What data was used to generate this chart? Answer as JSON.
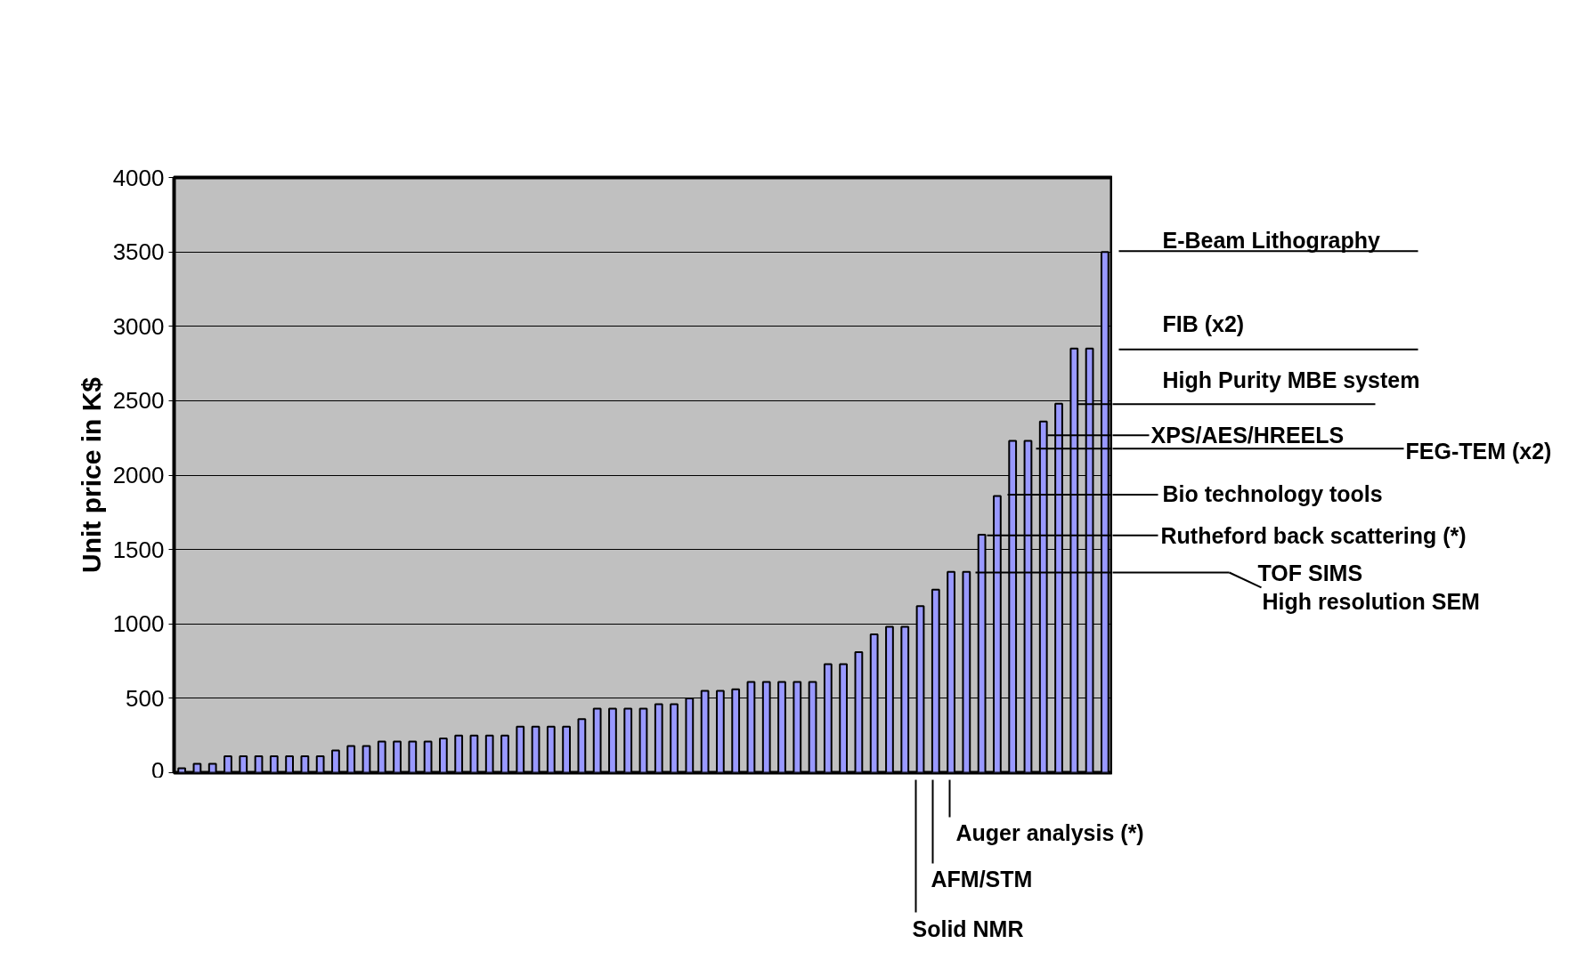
{
  "chart_data": {
    "type": "bar",
    "ylabel": "Unit price in K$",
    "categories": [
      null,
      null,
      null,
      null,
      null,
      null,
      null,
      null,
      null,
      null,
      null,
      null,
      null,
      null,
      null,
      null,
      null,
      null,
      null,
      null,
      null,
      null,
      null,
      null,
      null,
      null,
      null,
      null,
      null,
      null,
      null,
      null,
      null,
      null,
      null,
      null,
      null,
      null,
      null,
      null,
      null,
      null,
      null,
      null,
      null,
      null,
      null,
      null,
      null,
      null,
      null,
      null,
      null,
      null,
      null,
      null,
      null,
      null,
      null,
      null,
      null
    ],
    "values": [
      30,
      60,
      60,
      110,
      110,
      110,
      110,
      110,
      110,
      110,
      150,
      180,
      180,
      210,
      210,
      210,
      210,
      230,
      250,
      250,
      250,
      250,
      310,
      310,
      310,
      310,
      360,
      430,
      430,
      430,
      430,
      460,
      460,
      500,
      550,
      550,
      560,
      610,
      610,
      610,
      610,
      610,
      730,
      730,
      810,
      930,
      980,
      980,
      1120,
      1230,
      1350,
      1350,
      1600,
      1860,
      2230,
      2230,
      2360,
      2480,
      2850,
      2850,
      3500
    ],
    "color": "#9999ff",
    "ylim": [
      0,
      4000
    ],
    "yticks": [
      0,
      500,
      1000,
      1500,
      2000,
      2500,
      3000,
      3500,
      4000
    ],
    "grid": "y",
    "annotations": [
      "E-Beam Lithography",
      "FIB (x2)",
      "High Purity MBE system",
      "XPS/AES/HREELS",
      "FEG-TEM (x2)",
      "Bio technology tools",
      "Rutheford back scattering (*)",
      "TOF SIMS",
      "High resolution SEM",
      "Auger analysis (*)",
      "AFM/STM",
      "Solid NMR"
    ]
  }
}
